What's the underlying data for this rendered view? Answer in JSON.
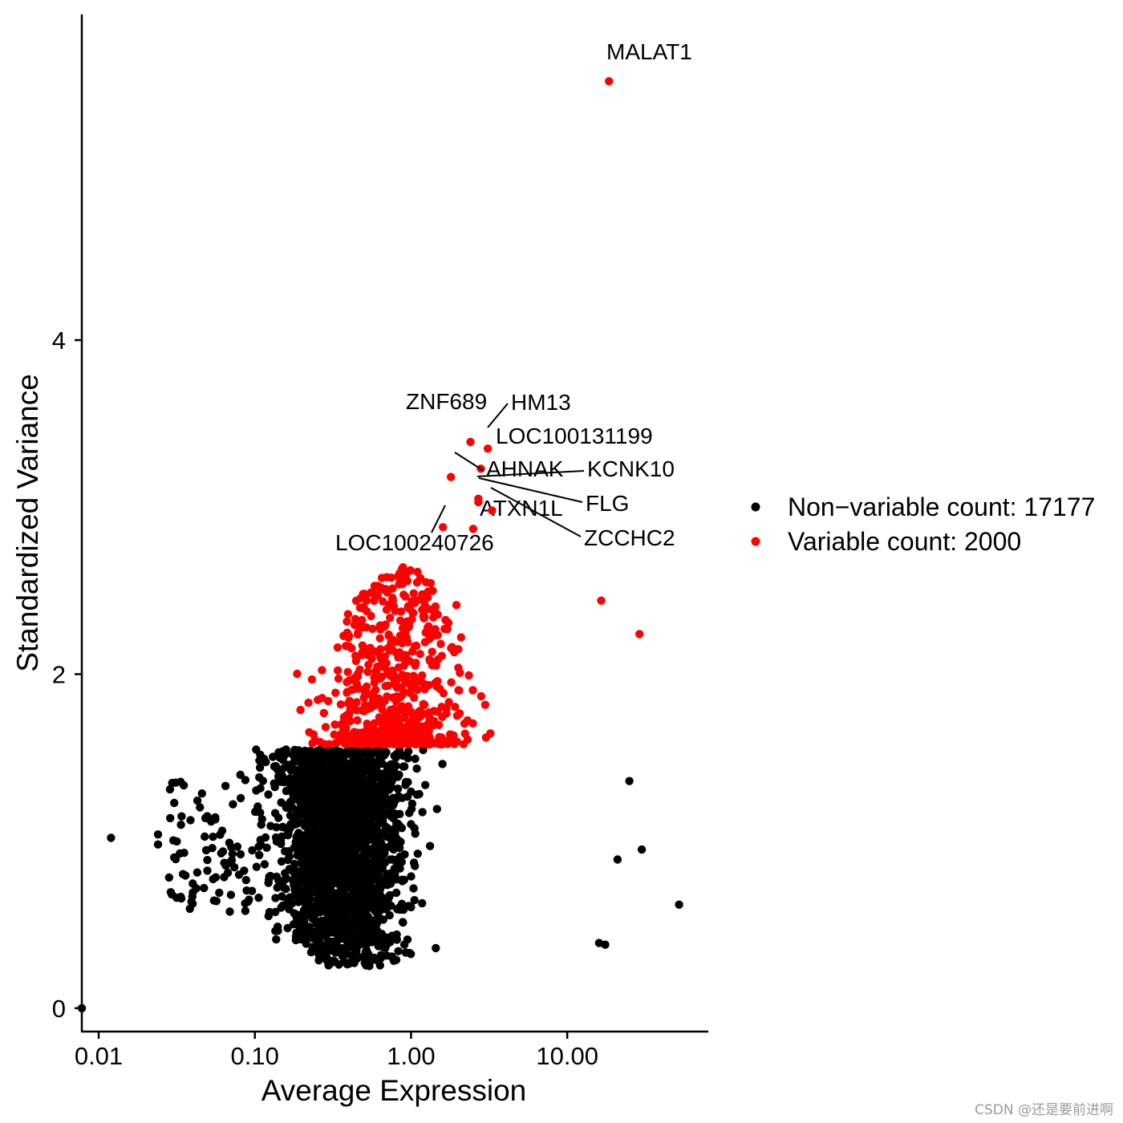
{
  "chart_data": {
    "type": "scatter",
    "title": "",
    "xlabel": "Average Expression",
    "ylabel": "Standardized Variance",
    "x_scale": "log10",
    "xlim": [
      0.0078,
      80
    ],
    "ylim": [
      -0.14,
      5.95
    ],
    "x_ticks": [
      {
        "value": 0.01,
        "label": "0.01"
      },
      {
        "value": 0.1,
        "label": "0.10"
      },
      {
        "value": 1,
        "label": "1.00"
      },
      {
        "value": 10,
        "label": "10.00"
      }
    ],
    "y_ticks": [
      {
        "value": 0,
        "label": "0"
      },
      {
        "value": 2,
        "label": "2"
      },
      {
        "value": 4,
        "label": "4"
      }
    ],
    "grid": false,
    "legend_position": "right",
    "series": [
      {
        "name": "Non−variable count: 17177",
        "color": "#000000",
        "count": 17177
      },
      {
        "name": "Variable count: 2000",
        "color": "#ff0000",
        "count": 2000
      }
    ],
    "labeled_genes": [
      {
        "gene": "MALAT1",
        "x": 18.5,
        "y": 5.55
      },
      {
        "gene": "ZNF689",
        "x": 2.4,
        "y": 3.39
      },
      {
        "gene": "HM13",
        "x": 3.1,
        "y": 3.35
      },
      {
        "gene": "LOC100131199",
        "x": 2.8,
        "y": 3.23
      },
      {
        "gene": "AHNAK",
        "x": 1.8,
        "y": 3.18
      },
      {
        "gene": "KCNK10",
        "x": 2.7,
        "y": 3.05
      },
      {
        "gene": "FLG",
        "x": 2.7,
        "y": 3.03
      },
      {
        "gene": "ATXN1L",
        "x": 2.5,
        "y": 2.87
      },
      {
        "gene": "ZCCHC2",
        "x": 3.3,
        "y": 2.98
      },
      {
        "gene": "LOC100240726",
        "x": 1.6,
        "y": 2.88
      }
    ],
    "notable_points": [
      {
        "x": 0.0078,
        "y": 0.0,
        "variable": false
      },
      {
        "x": 0.012,
        "y": 1.02,
        "variable": false
      },
      {
        "x": 0.024,
        "y": 0.98,
        "variable": false
      },
      {
        "x": 0.024,
        "y": 1.04,
        "variable": false
      },
      {
        "x": 25,
        "y": 1.36,
        "variable": false
      },
      {
        "x": 30,
        "y": 0.95,
        "variable": false
      },
      {
        "x": 21,
        "y": 0.89,
        "variable": false
      },
      {
        "x": 52,
        "y": 0.62,
        "variable": false
      },
      {
        "x": 16,
        "y": 0.39,
        "variable": false
      },
      {
        "x": 17.5,
        "y": 0.38,
        "variable": false
      },
      {
        "x": 16.5,
        "y": 2.44,
        "variable": true
      },
      {
        "x": 29,
        "y": 2.24,
        "variable": true
      }
    ]
  },
  "watermark": "CSDN @还是要前进啊"
}
